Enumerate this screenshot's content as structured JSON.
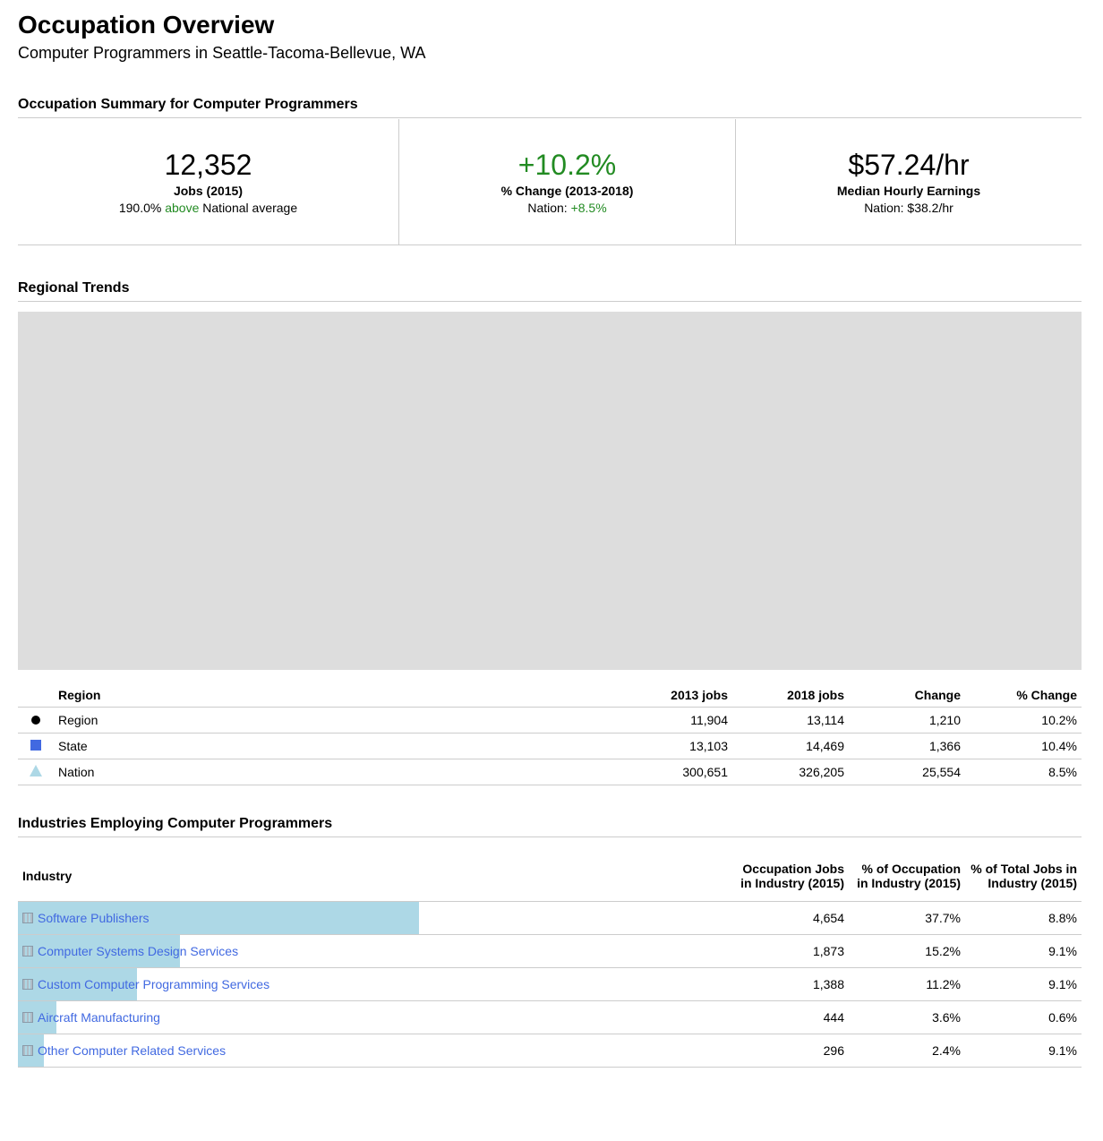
{
  "header": {
    "title": "Occupation Overview",
    "subtitle": "Computer Programmers in Seattle-Tacoma-Bellevue, WA"
  },
  "summary": {
    "title": "Occupation Summary for Computer Programmers",
    "kpis": [
      {
        "value": "12,352",
        "label": "Jobs (2015)",
        "sub_prefix": "190.0% ",
        "sub_highlight": "above",
        "sub_suffix": " National average"
      },
      {
        "value": "+10.2%",
        "label": "% Change (2013-2018)",
        "sub_prefix": "Nation: ",
        "sub_highlight": "+8.5%",
        "sub_suffix": ""
      },
      {
        "value": "$57.24/hr",
        "label": "Median Hourly Earnings",
        "sub_prefix": "Nation: $38.2/hr",
        "sub_highlight": "",
        "sub_suffix": ""
      }
    ]
  },
  "trends": {
    "title": "Regional Trends",
    "columns": [
      "Region",
      "2013 jobs",
      "2018 jobs",
      "Change",
      "% Change"
    ],
    "rows": [
      {
        "marker": "circle-marker",
        "name": "Region",
        "y2013": "11,904",
        "y2018": "13,114",
        "change": "1,210",
        "pct": "10.2%"
      },
      {
        "marker": "square-marker",
        "name": "State",
        "y2013": "13,103",
        "y2018": "14,469",
        "change": "1,366",
        "pct": "10.4%"
      },
      {
        "marker": "triangle-marker",
        "name": "Nation",
        "y2013": "300,651",
        "y2018": "326,205",
        "change": "25,554",
        "pct": "8.5%"
      }
    ]
  },
  "industries": {
    "title": "Industries Employing Computer Programmers",
    "columns": {
      "industry": "Industry",
      "jobs_line1": "Occupation Jobs",
      "jobs_line2": "in Industry (2015)",
      "pct_occ_line1": "% of Occupation",
      "pct_occ_line2": "in Industry (2015)",
      "pct_total_line1": "% of Total Jobs in",
      "pct_total_line2": "Industry (2015)"
    },
    "rows": [
      {
        "name": "Software Publishers",
        "jobs": "4,654",
        "pct_occ": "37.7%",
        "pct_total": "8.8%",
        "share": 0.377
      },
      {
        "name": "Computer Systems Design Services",
        "jobs": "1,873",
        "pct_occ": "15.2%",
        "pct_total": "9.1%",
        "share": 0.152
      },
      {
        "name": "Custom Computer Programming Services",
        "jobs": "1,388",
        "pct_occ": "11.2%",
        "pct_total": "9.1%",
        "share": 0.112
      },
      {
        "name": "Aircraft Manufacturing",
        "jobs": "444",
        "pct_occ": "3.6%",
        "pct_total": "0.6%",
        "share": 0.036
      },
      {
        "name": "Other Computer Related Services",
        "jobs": "296",
        "pct_occ": "2.4%",
        "pct_total": "9.1%",
        "share": 0.024
      }
    ]
  },
  "colors": {
    "positive": "#228b22",
    "link": "#4169e1",
    "bar": "#add8e6",
    "chart_placeholder": "#dddddd"
  }
}
